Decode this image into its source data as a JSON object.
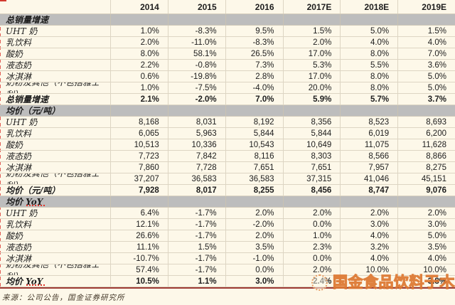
{
  "table": {
    "columns": [
      "2014",
      "2015",
      "2016",
      "2017E",
      "2018E",
      "2019E"
    ],
    "sections": [
      {
        "header": "总销量增速",
        "squiggle": false,
        "rows": [
          {
            "label": "UHT 奶",
            "values": [
              "1.0%",
              "-8.3%",
              "9.5%",
              "1.5%",
              "5.0%",
              "1.5%"
            ]
          },
          {
            "label": "乳饮料",
            "values": [
              "2.0%",
              "-11.0%",
              "-8.3%",
              "2.0%",
              "4.0%",
              "4.0%"
            ]
          },
          {
            "label": "酸奶",
            "values": [
              "8.0%",
              "58.1%",
              "26.5%",
              "17.0%",
              "8.0%",
              "7.0%"
            ]
          },
          {
            "label": "液态奶",
            "values": [
              "2.2%",
              "-0.8%",
              "7.3%",
              "5.3%",
              "5.5%",
              "3.6%"
            ]
          },
          {
            "label": "冰淇淋",
            "values": [
              "0.6%",
              "-19.8%",
              "2.8%",
              "17.0%",
              "8.0%",
              "5.0%"
            ]
          },
          {
            "label": "奶粉及其他（不包括雅士利）",
            "values": [
              "1.0%",
              "-7.5%",
              "-4.0%",
              "20.0%",
              "8.0%",
              "5.0%"
            ]
          }
        ],
        "total": {
          "label": "总销量增速",
          "values": [
            "2.1%",
            "-2.0%",
            "7.0%",
            "5.9%",
            "5.7%",
            "3.7%"
          ]
        }
      },
      {
        "header": "均价（元/吨）",
        "squiggle": false,
        "rows": [
          {
            "label": "UHT 奶",
            "values": [
              "8,168",
              "8,031",
              "8,192",
              "8,356",
              "8,523",
              "8,693"
            ]
          },
          {
            "label": "乳饮料",
            "values": [
              "6,065",
              "5,963",
              "5,844",
              "5,844",
              "6,019",
              "6,200"
            ]
          },
          {
            "label": "酸奶",
            "values": [
              "10,513",
              "10,336",
              "10,543",
              "10,649",
              "11,075",
              "11,628"
            ]
          },
          {
            "label": "液态奶",
            "values": [
              "7,723",
              "7,842",
              "8,116",
              "8,303",
              "8,566",
              "8,866"
            ]
          },
          {
            "label": "冰淇淋",
            "values": [
              "7,860",
              "7,728",
              "7,651",
              "7,651",
              "7,957",
              "8,275"
            ]
          },
          {
            "label": "奶粉及其他（不包括雅士利）",
            "values": [
              "37,207",
              "36,583",
              "36,583",
              "37,315",
              "41,046",
              "45,151"
            ]
          }
        ],
        "total": {
          "label": "均价（元/吨）",
          "values": [
            "7,928",
            "8,017",
            "8,255",
            "8,456",
            "8,747",
            "9,076"
          ]
        }
      },
      {
        "header": "均价 YoY",
        "squiggle": true,
        "rows": [
          {
            "label": "UHT 奶",
            "values": [
              "6.4%",
              "-1.7%",
              "2.0%",
              "2.0%",
              "2.0%",
              "2.0%"
            ]
          },
          {
            "label": "乳饮料",
            "values": [
              "12.1%",
              "-1.7%",
              "-2.0%",
              "0.0%",
              "3.0%",
              "3.0%"
            ]
          },
          {
            "label": "酸奶",
            "values": [
              "26.6%",
              "-1.7%",
              "2.0%",
              "1.0%",
              "4.0%",
              "5.0%"
            ]
          },
          {
            "label": "液态奶",
            "values": [
              "11.1%",
              "1.5%",
              "3.5%",
              "2.3%",
              "3.2%",
              "3.5%"
            ]
          },
          {
            "label": "冰淇淋",
            "values": [
              "-10.7%",
              "-1.7%",
              "-1.0%",
              "0.0%",
              "4.0%",
              "4.0%"
            ]
          },
          {
            "label": "奶粉及其他（不包括雅士利）",
            "values": [
              "57.4%",
              "-1.7%",
              "0.0%",
              "2.0%",
              "10.0%",
              "10.0%"
            ]
          }
        ],
        "total": {
          "label": "均价 YoY",
          "values": [
            "10.5%",
            "1.1%",
            "3.0%",
            "2.4%",
            "",
            "3.8%"
          ]
        }
      }
    ],
    "footer": "来源：公司公告，国金证券研究所"
  },
  "watermark": {
    "text": "国金食品饮料于木",
    "icon": "circle-badge-icon"
  },
  "colors": {
    "page_background": "#fdf8e9",
    "section_bar": "#bdbdbd",
    "grid_line": "#ddd5c3",
    "bottom_border": "#9e3a34",
    "spellcheck_red": "#e03328",
    "watermark_outline": "#db732b"
  }
}
